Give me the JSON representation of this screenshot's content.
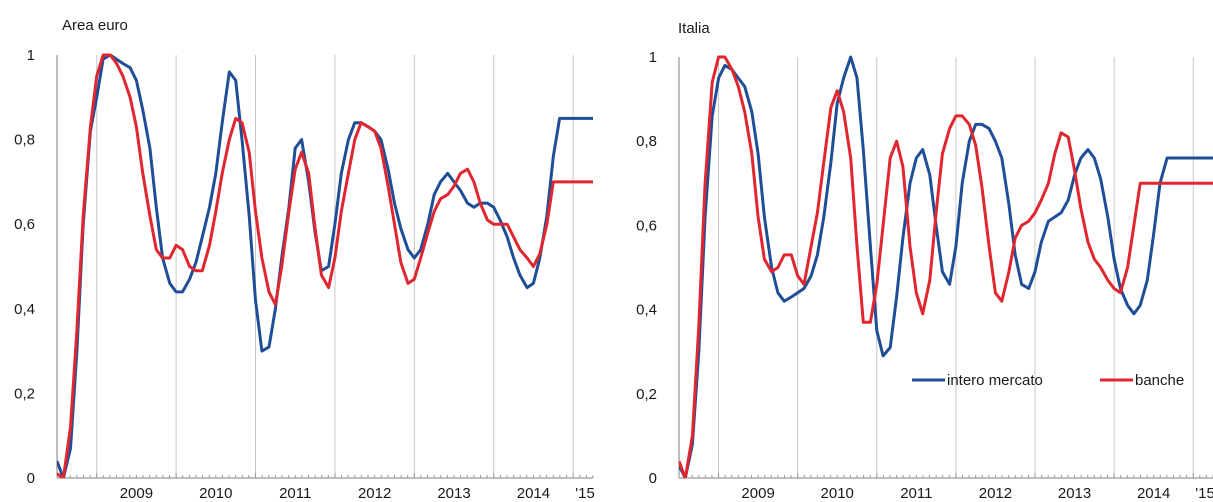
{
  "chart_data": [
    {
      "type": "line",
      "title": "Area euro",
      "xlabel": "",
      "ylabel": "",
      "x_ticks": [
        "2009",
        "2010",
        "2011",
        "2012",
        "2013",
        "2014",
        "'15"
      ],
      "y_ticks": [
        "0",
        "0,2",
        "0,4",
        "0,6",
        "0,8",
        "1"
      ],
      "xlim": [
        2008.5,
        2015.25
      ],
      "ylim": [
        0,
        1
      ],
      "grid": "vertical",
      "legend": "none",
      "series": [
        {
          "name": "intero mercato",
          "color": "#1f4e97",
          "x": [
            2008.5,
            2008.58,
            2008.67,
            2008.75,
            2008.83,
            2008.92,
            2009.0,
            2009.08,
            2009.17,
            2009.25,
            2009.33,
            2009.42,
            2009.5,
            2009.58,
            2009.67,
            2009.75,
            2009.83,
            2009.92,
            2010.0,
            2010.08,
            2010.17,
            2010.25,
            2010.33,
            2010.42,
            2010.5,
            2010.58,
            2010.67,
            2010.75,
            2010.83,
            2010.92,
            2011.0,
            2011.08,
            2011.17,
            2011.25,
            2011.33,
            2011.42,
            2011.5,
            2011.58,
            2011.67,
            2011.75,
            2011.83,
            2011.92,
            2012.0,
            2012.08,
            2012.17,
            2012.25,
            2012.33,
            2012.42,
            2012.5,
            2012.58,
            2012.67,
            2012.75,
            2012.83,
            2012.92,
            2013.0,
            2013.08,
            2013.17,
            2013.25,
            2013.33,
            2013.42,
            2013.5,
            2013.58,
            2013.67,
            2013.75,
            2013.83,
            2013.92,
            2014.0,
            2014.08,
            2014.17,
            2014.25,
            2014.33,
            2014.42,
            2014.5,
            2014.58,
            2014.67,
            2014.75,
            2014.83,
            2014.92,
            2015.0,
            2015.08,
            2015.17,
            2015.25
          ],
          "y": [
            0.04,
            0.0,
            0.07,
            0.3,
            0.6,
            0.82,
            0.9,
            0.99,
            1.0,
            0.99,
            0.98,
            0.97,
            0.94,
            0.87,
            0.78,
            0.64,
            0.52,
            0.46,
            0.44,
            0.44,
            0.47,
            0.51,
            0.57,
            0.64,
            0.72,
            0.84,
            0.96,
            0.94,
            0.8,
            0.62,
            0.42,
            0.3,
            0.31,
            0.4,
            0.52,
            0.64,
            0.78,
            0.8,
            0.7,
            0.58,
            0.49,
            0.5,
            0.6,
            0.72,
            0.8,
            0.84,
            0.84,
            0.83,
            0.82,
            0.8,
            0.73,
            0.65,
            0.59,
            0.54,
            0.52,
            0.54,
            0.6,
            0.67,
            0.7,
            0.72,
            0.7,
            0.68,
            0.65,
            0.64,
            0.65,
            0.65,
            0.64,
            0.61,
            0.57,
            0.52,
            0.48,
            0.45,
            0.46,
            0.52,
            0.62,
            0.76,
            0.85,
            0.85,
            0.85,
            0.85,
            0.85,
            0.85
          ]
        },
        {
          "name": "banche",
          "color": "#e0262e",
          "x": [
            2008.5,
            2008.58,
            2008.67,
            2008.75,
            2008.83,
            2008.92,
            2009.0,
            2009.08,
            2009.17,
            2009.25,
            2009.33,
            2009.42,
            2009.5,
            2009.58,
            2009.67,
            2009.75,
            2009.83,
            2009.92,
            2010.0,
            2010.08,
            2010.17,
            2010.25,
            2010.33,
            2010.42,
            2010.5,
            2010.58,
            2010.67,
            2010.75,
            2010.83,
            2010.92,
            2011.0,
            2011.08,
            2011.17,
            2011.25,
            2011.33,
            2011.42,
            2011.5,
            2011.58,
            2011.67,
            2011.75,
            2011.83,
            2011.92,
            2012.0,
            2012.08,
            2012.17,
            2012.25,
            2012.33,
            2012.42,
            2012.5,
            2012.58,
            2012.67,
            2012.75,
            2012.83,
            2012.92,
            2013.0,
            2013.08,
            2013.17,
            2013.25,
            2013.33,
            2013.42,
            2013.5,
            2013.58,
            2013.67,
            2013.75,
            2013.83,
            2013.92,
            2014.0,
            2014.08,
            2014.17,
            2014.25,
            2014.33,
            2014.42,
            2014.5,
            2014.58,
            2014.67,
            2014.75,
            2014.83,
            2014.92,
            2015.0,
            2015.08,
            2015.17,
            2015.25
          ],
          "y": [
            0.01,
            0.0,
            0.12,
            0.35,
            0.62,
            0.83,
            0.95,
            1.0,
            1.0,
            0.98,
            0.95,
            0.9,
            0.83,
            0.72,
            0.62,
            0.54,
            0.52,
            0.52,
            0.55,
            0.54,
            0.5,
            0.49,
            0.49,
            0.55,
            0.63,
            0.72,
            0.8,
            0.85,
            0.84,
            0.77,
            0.63,
            0.52,
            0.44,
            0.41,
            0.5,
            0.63,
            0.73,
            0.77,
            0.72,
            0.59,
            0.48,
            0.45,
            0.52,
            0.63,
            0.72,
            0.8,
            0.84,
            0.83,
            0.82,
            0.78,
            0.69,
            0.6,
            0.51,
            0.46,
            0.47,
            0.52,
            0.58,
            0.63,
            0.66,
            0.67,
            0.69,
            0.72,
            0.73,
            0.7,
            0.65,
            0.61,
            0.6,
            0.6,
            0.6,
            0.57,
            0.54,
            0.52,
            0.5,
            0.53,
            0.6,
            0.7,
            0.7,
            0.7,
            0.7,
            0.7,
            0.7,
            0.7
          ]
        }
      ]
    },
    {
      "type": "line",
      "title": "Italia",
      "xlabel": "",
      "ylabel": "",
      "x_ticks": [
        "2009",
        "2010",
        "2011",
        "2012",
        "2013",
        "2014",
        "'15"
      ],
      "y_ticks": [
        "0",
        "0,2",
        "0,4",
        "0,6",
        "0,8",
        "1"
      ],
      "xlim": [
        2008.5,
        2015.25
      ],
      "ylim": [
        0,
        1
      ],
      "grid": "vertical",
      "legend": "inside-lower-right",
      "series": [
        {
          "name": "intero mercato",
          "color": "#1f4e97",
          "x": [
            2008.5,
            2008.58,
            2008.67,
            2008.75,
            2008.83,
            2008.92,
            2009.0,
            2009.08,
            2009.17,
            2009.25,
            2009.33,
            2009.42,
            2009.5,
            2009.58,
            2009.67,
            2009.75,
            2009.83,
            2009.92,
            2010.0,
            2010.08,
            2010.17,
            2010.25,
            2010.33,
            2010.42,
            2010.5,
            2010.58,
            2010.67,
            2010.75,
            2010.83,
            2010.92,
            2011.0,
            2011.08,
            2011.17,
            2011.25,
            2011.33,
            2011.42,
            2011.5,
            2011.58,
            2011.67,
            2011.75,
            2011.83,
            2011.92,
            2012.0,
            2012.08,
            2012.17,
            2012.25,
            2012.33,
            2012.42,
            2012.5,
            2012.58,
            2012.67,
            2012.75,
            2012.83,
            2012.92,
            2013.0,
            2013.08,
            2013.17,
            2013.25,
            2013.33,
            2013.42,
            2013.5,
            2013.58,
            2013.67,
            2013.75,
            2013.83,
            2013.92,
            2014.0,
            2014.08,
            2014.17,
            2014.25,
            2014.33,
            2014.42,
            2014.5,
            2014.58,
            2014.67,
            2014.75,
            2014.83,
            2014.92,
            2015.0,
            2015.08,
            2015.17,
            2015.25
          ],
          "y": [
            0.03,
            0.0,
            0.08,
            0.3,
            0.62,
            0.86,
            0.95,
            0.98,
            0.97,
            0.95,
            0.93,
            0.87,
            0.77,
            0.62,
            0.5,
            0.44,
            0.42,
            0.43,
            0.44,
            0.45,
            0.48,
            0.53,
            0.62,
            0.75,
            0.89,
            0.95,
            1.0,
            0.95,
            0.78,
            0.55,
            0.35,
            0.29,
            0.31,
            0.43,
            0.57,
            0.7,
            0.76,
            0.78,
            0.72,
            0.6,
            0.49,
            0.46,
            0.55,
            0.7,
            0.8,
            0.84,
            0.84,
            0.83,
            0.8,
            0.76,
            0.65,
            0.53,
            0.46,
            0.45,
            0.49,
            0.56,
            0.61,
            0.62,
            0.63,
            0.66,
            0.72,
            0.76,
            0.78,
            0.76,
            0.71,
            0.62,
            0.52,
            0.45,
            0.41,
            0.39,
            0.41,
            0.47,
            0.58,
            0.7,
            0.76,
            0.76,
            0.76,
            0.76,
            0.76,
            0.76,
            0.76,
            0.76
          ]
        },
        {
          "name": "banche",
          "color": "#e0262e",
          "x": [
            2008.5,
            2008.58,
            2008.67,
            2008.75,
            2008.83,
            2008.92,
            2009.0,
            2009.08,
            2009.17,
            2009.25,
            2009.33,
            2009.42,
            2009.5,
            2009.58,
            2009.67,
            2009.75,
            2009.83,
            2009.92,
            2010.0,
            2010.08,
            2010.17,
            2010.25,
            2010.33,
            2010.42,
            2010.5,
            2010.58,
            2010.67,
            2010.75,
            2010.83,
            2010.92,
            2011.0,
            2011.08,
            2011.17,
            2011.25,
            2011.33,
            2011.42,
            2011.5,
            2011.58,
            2011.67,
            2011.75,
            2011.83,
            2011.92,
            2012.0,
            2012.08,
            2012.17,
            2012.25,
            2012.33,
            2012.42,
            2012.5,
            2012.58,
            2012.67,
            2012.75,
            2012.83,
            2012.92,
            2013.0,
            2013.08,
            2013.17,
            2013.25,
            2013.33,
            2013.42,
            2013.5,
            2013.58,
            2013.67,
            2013.75,
            2013.83,
            2013.92,
            2014.0,
            2014.08,
            2014.17,
            2014.25,
            2014.33,
            2014.42,
            2014.5,
            2014.58,
            2014.67,
            2014.75,
            2014.83,
            2014.92,
            2015.0,
            2015.08,
            2015.17,
            2015.25
          ],
          "y": [
            0.04,
            0.0,
            0.1,
            0.36,
            0.7,
            0.94,
            1.0,
            1.0,
            0.97,
            0.93,
            0.87,
            0.77,
            0.62,
            0.52,
            0.49,
            0.5,
            0.53,
            0.53,
            0.48,
            0.46,
            0.55,
            0.63,
            0.75,
            0.88,
            0.92,
            0.87,
            0.76,
            0.55,
            0.37,
            0.37,
            0.46,
            0.6,
            0.76,
            0.8,
            0.74,
            0.55,
            0.44,
            0.39,
            0.47,
            0.63,
            0.77,
            0.83,
            0.86,
            0.86,
            0.84,
            0.79,
            0.69,
            0.55,
            0.44,
            0.42,
            0.49,
            0.57,
            0.6,
            0.61,
            0.63,
            0.66,
            0.7,
            0.77,
            0.82,
            0.81,
            0.73,
            0.64,
            0.56,
            0.52,
            0.5,
            0.47,
            0.45,
            0.44,
            0.5,
            0.6,
            0.7,
            0.7,
            0.7,
            0.7,
            0.7,
            0.7,
            0.7,
            0.7,
            0.7,
            0.7,
            0.7,
            0.7
          ]
        }
      ]
    }
  ]
}
